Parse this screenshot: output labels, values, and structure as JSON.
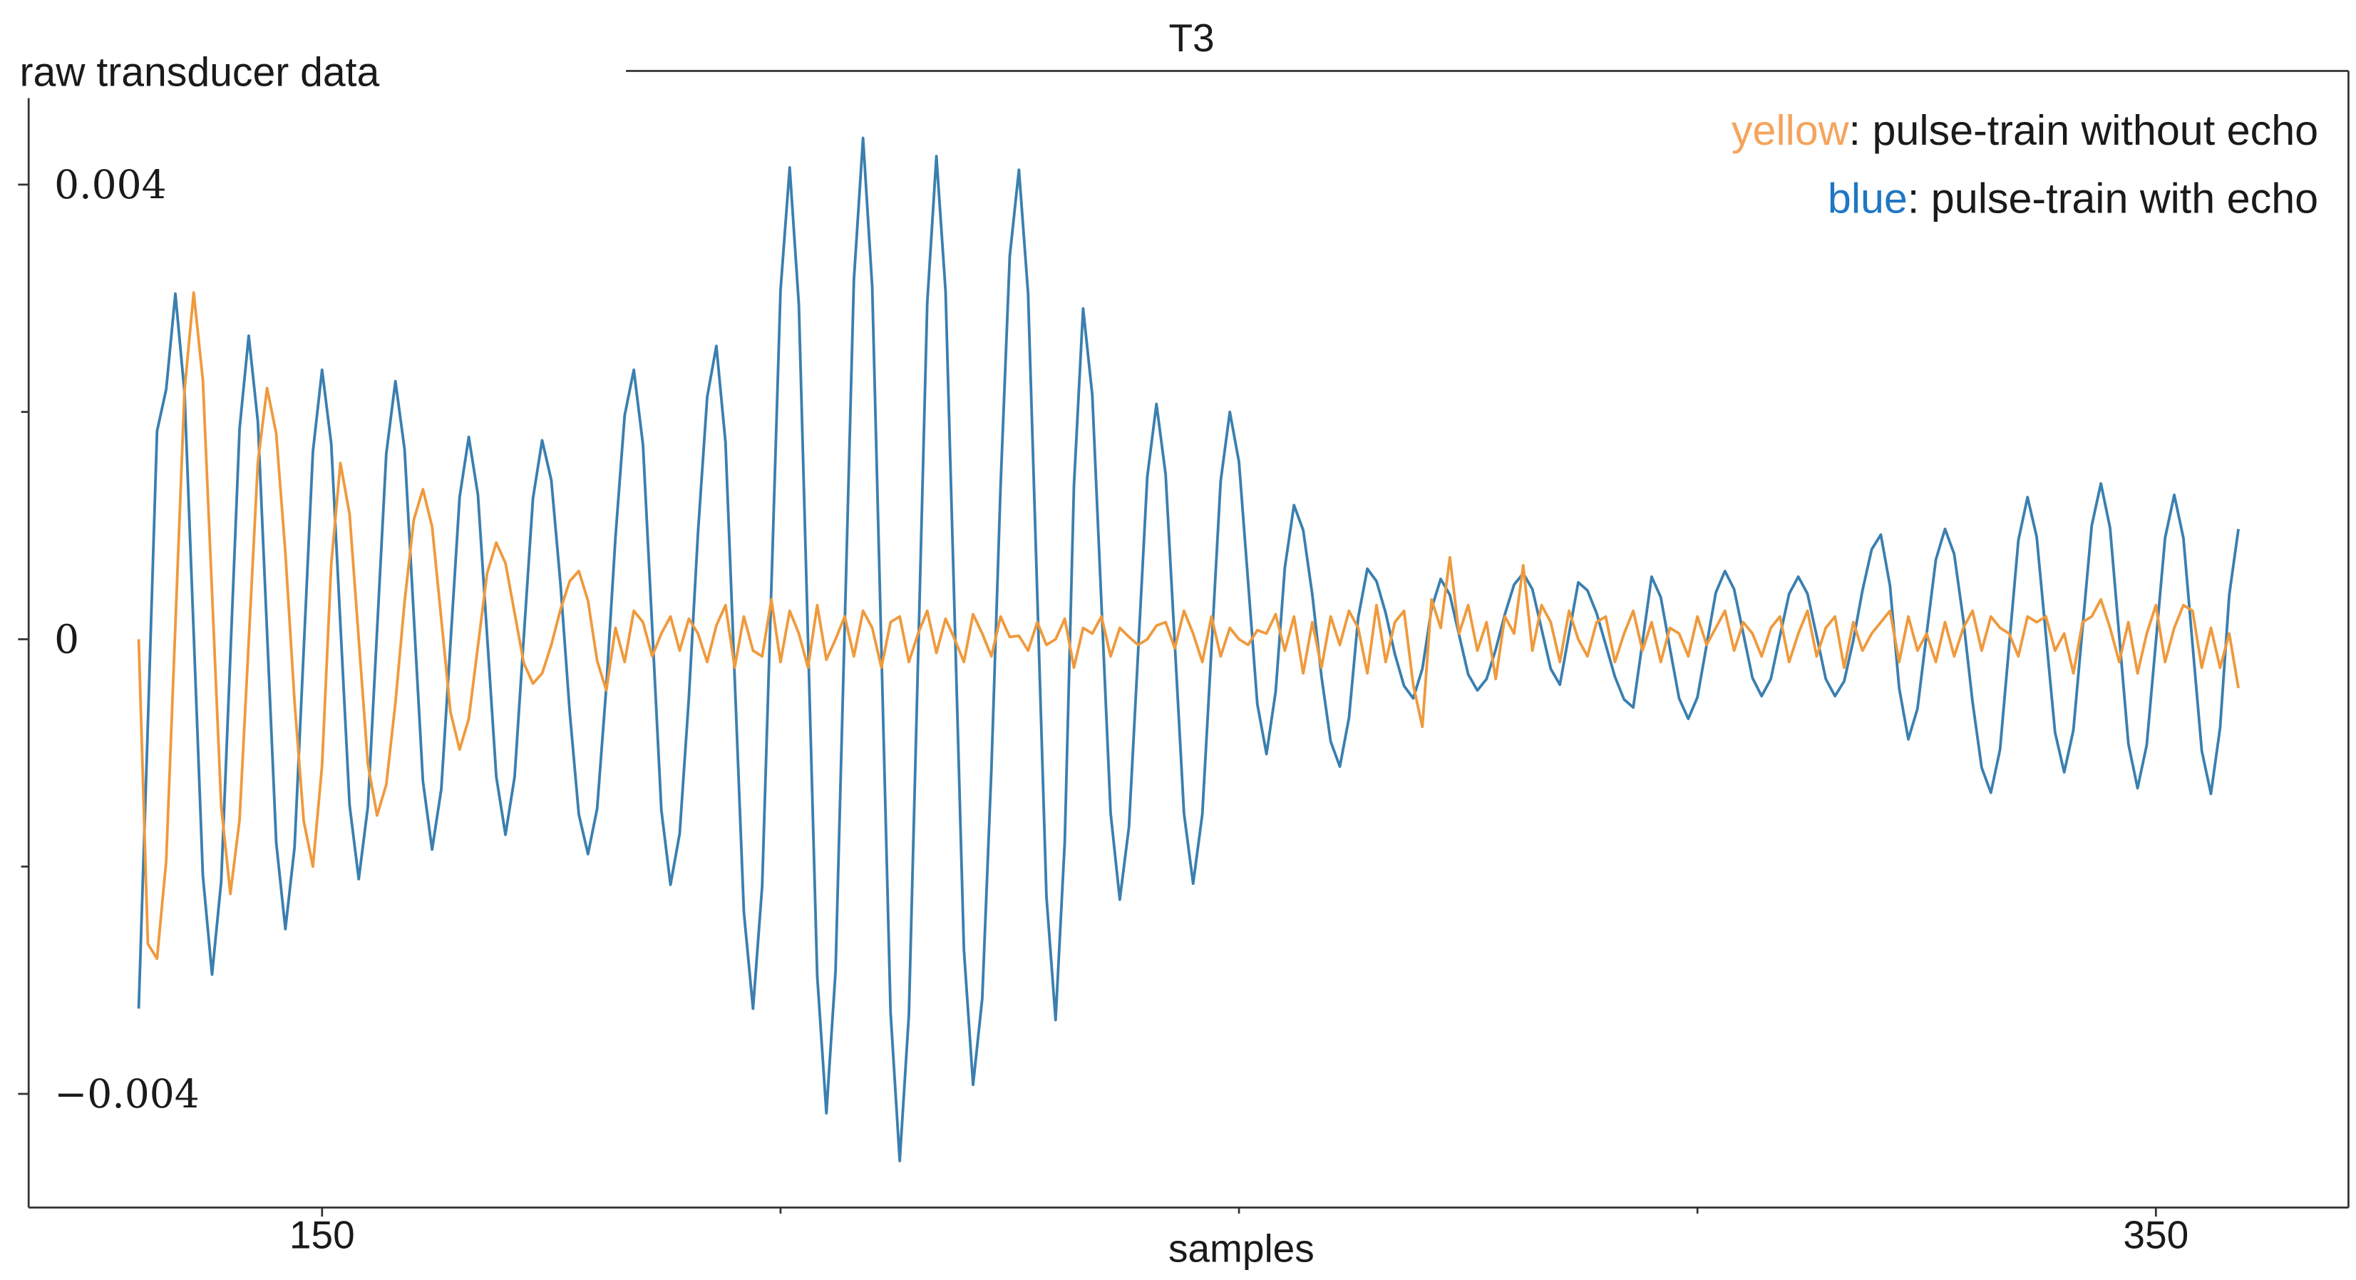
{
  "chart_data": {
    "type": "line",
    "title": "T3",
    "ylabel": "raw transducer data",
    "xlabel": "samples",
    "xlim": [
      118,
      371
    ],
    "ylim": [
      -0.005,
      0.005
    ],
    "xticks": [
      150,
      350
    ],
    "xticks_minor": [
      200,
      250,
      300
    ],
    "yticks": [
      {
        "value": -0.004,
        "label": "−0.004"
      },
      0,
      0.004
    ],
    "yticks_minor": [
      -0.002,
      0.002
    ],
    "legend": "upper right",
    "x": [
      130,
      131,
      132,
      133,
      134,
      135,
      136,
      137,
      138,
      139,
      140,
      141,
      142,
      143,
      144,
      145,
      146,
      147,
      148,
      149,
      150,
      151,
      152,
      153,
      154,
      155,
      156,
      157,
      158,
      159,
      160,
      161,
      162,
      163,
      164,
      165,
      166,
      167,
      168,
      169,
      170,
      171,
      172,
      173,
      174,
      175,
      176,
      177,
      178,
      179,
      180,
      181,
      182,
      183,
      184,
      185,
      186,
      187,
      188,
      189,
      190,
      191,
      192,
      193,
      194,
      195,
      196,
      197,
      198,
      199,
      200,
      201,
      202,
      203,
      204,
      205,
      206,
      207,
      208,
      209,
      210,
      211,
      212,
      213,
      214,
      215,
      216,
      217,
      218,
      219,
      220,
      221,
      222,
      223,
      224,
      225,
      226,
      227,
      228,
      229,
      230,
      231,
      232,
      233,
      234,
      235,
      236,
      237,
      238,
      239,
      240,
      241,
      242,
      243,
      244,
      245,
      246,
      247,
      248,
      249,
      250,
      251,
      252,
      253,
      254,
      255,
      256,
      257,
      258,
      259,
      260,
      261,
      262,
      263,
      264,
      265,
      266,
      267,
      268,
      269,
      270,
      271,
      272,
      273,
      274,
      275,
      276,
      277,
      278,
      279,
      280,
      281,
      282,
      283,
      284,
      285,
      286,
      287,
      288,
      289,
      290,
      291,
      292,
      293,
      294,
      295,
      296,
      297,
      298,
      299,
      300,
      301,
      302,
      303,
      304,
      305,
      306,
      307,
      308,
      309,
      310,
      311,
      312,
      313,
      314,
      315,
      316,
      317,
      318,
      319,
      320,
      321,
      322,
      323,
      324,
      325,
      326,
      327,
      328,
      329,
      330,
      331,
      332,
      333,
      334,
      335,
      336,
      337,
      338,
      339,
      340,
      341,
      342,
      343,
      344,
      345,
      346,
      347,
      348,
      349,
      350,
      351,
      352,
      353,
      354,
      355,
      356,
      357,
      358,
      359
    ],
    "series": [
      {
        "name": "blue",
        "description": ": pulse-train with echo",
        "color": "#3a7fb0",
        "label_color": "#1f77c4",
        "values": [
          -0.00325,
          -0.00075,
          0.00183,
          0.0022,
          0.00304,
          0.00217,
          5e-05,
          -0.00208,
          -0.00295,
          -0.00213,
          -0.00014,
          0.00185,
          0.00267,
          0.00191,
          6e-05,
          -0.00179,
          -0.00255,
          -0.00183,
          -9e-05,
          0.00165,
          0.00237,
          0.00172,
          0.00013,
          -0.00146,
          -0.00211,
          -0.00147,
          8e-05,
          0.00163,
          0.00227,
          0.00167,
          0.00021,
          -0.00125,
          -0.00185,
          -0.00132,
          -4e-05,
          0.00125,
          0.00178,
          0.00127,
          3e-05,
          -0.00121,
          -0.00172,
          -0.00121,
          2e-05,
          0.00124,
          0.00175,
          0.0014,
          0.00049,
          -0.00063,
          -0.00154,
          -0.00189,
          -0.00149,
          -0.00042,
          0.0009,
          0.00197,
          0.00237,
          0.00171,
          0.00011,
          -0.0015,
          -0.00216,
          -0.00171,
          -0.00052,
          0.00094,
          0.00213,
          0.00258,
          0.00173,
          -0.00034,
          -0.0024,
          -0.00325,
          -0.00217,
          0.00045,
          0.00307,
          0.00415,
          0.00294,
          -1e-05,
          -0.00296,
          -0.00417,
          -0.00292,
          0.00012,
          0.00316,
          0.00441,
          0.0031,
          -9e-05,
          -0.00328,
          -0.00459,
          -0.0033,
          -0.00017,
          0.00296,
          0.00425,
          0.00306,
          0.00017,
          -0.00273,
          -0.00392,
          -0.00316,
          -0.00114,
          0.00135,
          0.00337,
          0.00413,
          0.00304,
          0.00039,
          -0.00226,
          -0.00335,
          -0.00178,
          0.00135,
          0.00291,
          0.00215,
          0.00031,
          -0.00153,
          -0.00229,
          -0.00165,
          -0.00011,
          0.00143,
          0.00207,
          0.00145,
          -4e-05,
          -0.00153,
          -0.00215,
          -0.00154,
          -8e-05,
          0.00139,
          0.002,
          0.00156,
          0.0005,
          -0.00057,
          -0.00101,
          -0.00046,
          0.00063,
          0.00118,
          0.00096,
          0.00039,
          -0.00033,
          -0.0009,
          -0.00112,
          -0.00069,
          0.00019,
          0.00062,
          0.00051,
          0.00023,
          -0.00013,
          -0.00041,
          -0.00052,
          -0.00026,
          0.00027,
          0.00053,
          0.00039,
          4e-05,
          -0.00031,
          -0.00045,
          -0.00035,
          -9e-05,
          0.00022,
          0.00048,
          0.00058,
          0.00044,
          9e-05,
          -0.00026,
          -0.0004,
          5e-05,
          0.0005,
          0.00043,
          0.00023,
          -5e-05,
          -0.00033,
          -0.00053,
          -0.0006,
          -3e-05,
          0.00055,
          0.00037,
          -8e-05,
          -0.00052,
          -0.0007,
          -0.00051,
          -5e-05,
          0.00041,
          0.0006,
          0.00044,
          5e-05,
          -0.00034,
          -0.0005,
          -0.00035,
          3e-05,
          0.0004,
          0.00055,
          0.0004,
          3e-05,
          -0.00035,
          -0.0005,
          -0.00037,
          -1e-05,
          0.00043,
          0.00079,
          0.00092,
          0.00047,
          -0.00043,
          -0.00088,
          -0.00061,
          5e-05,
          0.0007,
          0.00097,
          0.00075,
          0.00017,
          -0.00055,
          -0.00113,
          -0.00135,
          -0.00097,
          -5e-05,
          0.00087,
          0.00125,
          0.0009,
          4e-05,
          -0.00082,
          -0.00117,
          -0.0008,
          0.0001,
          0.001,
          0.00137,
          0.00098,
          3e-05,
          -0.00092,
          -0.00131,
          -0.00093,
          -2e-05,
          0.00089,
          0.00127,
          0.00089,
          -5e-05,
          -0.00098,
          -0.00136,
          -0.00078,
          0.00039,
          0.00097
        ]
      },
      {
        "name": "yellow",
        "description": ": pulse-train without echo",
        "color": "#ef9a3d",
        "label_color": "#f5a45c",
        "values": [
          0,
          -0.00268,
          -0.00281,
          -0.00195,
          0.00012,
          0.00219,
          0.00305,
          0.00228,
          0.00041,
          -0.00147,
          -0.00224,
          -0.00159,
          -2e-05,
          0.00156,
          0.00221,
          0.00181,
          0.00076,
          -0.00055,
          -0.0016,
          -0.002,
          -0.00111,
          0.00066,
          0.00155,
          0.0011,
          0,
          -0.0011,
          -0.00155,
          -0.00128,
          -0.00056,
          0.00033,
          0.00105,
          0.00132,
          0.00099,
          0.00018,
          -0.00064,
          -0.00097,
          -0.0007,
          -6e-05,
          0.00058,
          0.00085,
          0.00067,
          0.00023,
          -0.00021,
          -0.00039,
          -0.0003,
          -5e-05,
          0.00026,
          0.00051,
          0.0006,
          0.00034,
          -0.00019,
          -0.00045,
          0.0001,
          -0.0002,
          0.00025,
          0.00015,
          -0.00015,
          5e-05,
          0.0002,
          -0.0001,
          0.00018,
          5e-05,
          -0.0002,
          0.00012,
          0.0003,
          -0.00025,
          0.0002,
          -0.0001,
          -0.00015,
          0.00035,
          -0.0002,
          0.00025,
          5e-05,
          -0.00025,
          0.0003,
          -0.00018,
          0,
          0.0002,
          -0.00015,
          0.00025,
          0.0001,
          -0.00025,
          0.00015,
          0.0002,
          -0.0002,
          5e-05,
          0.00025,
          -0.00012,
          0.00018,
          0,
          -0.0002,
          0.00022,
          5e-05,
          -0.00015,
          0.0002,
          2e-05,
          3e-05,
          -0.0001,
          0.00015,
          -5e-05,
          0,
          0.00018,
          -0.00025,
          0.0001,
          5e-05,
          0.0002,
          -0.00015,
          0.0001,
          2e-05,
          -5e-05,
          0,
          0.00012,
          0.00015,
          -8e-05,
          0.00025,
          5e-05,
          -0.0002,
          0.0002,
          -0.00015,
          0.0001,
          0,
          -5e-05,
          8e-05,
          5e-05,
          0.00022,
          -0.0001,
          0.0002,
          -0.0003,
          0.00015,
          -0.00025,
          0.0002,
          -5e-05,
          0.00025,
          0.0001,
          -0.0003,
          0.0003,
          -0.0002,
          0.00015,
          0.00025,
          -0.0004,
          -0.00077,
          0.00035,
          0.0001,
          0.00072,
          5e-05,
          0.0003,
          -0.0001,
          0.00015,
          -0.00035,
          0.0002,
          5e-05,
          0.00065,
          -0.0001,
          0.0003,
          0.00015,
          -0.0002,
          0.00025,
          0,
          -0.00015,
          0.00015,
          0.0002,
          -0.0002,
          5e-05,
          0.00025,
          -0.0001,
          0.00015,
          -0.0002,
          0.0001,
          5e-05,
          -0.00015,
          0.0002,
          -5e-05,
          0.0001,
          0.00025,
          -0.0001,
          0.00015,
          5e-05,
          -0.00015,
          0.0001,
          0.0002,
          -0.0002,
          5e-05,
          0.00025,
          -0.00015,
          0.0001,
          0.0002,
          -0.00025,
          0.00015,
          -0.0001,
          5e-05,
          0.00015,
          0.00025,
          -0.0002,
          0.0002,
          -0.0001,
          5e-05,
          -0.0002,
          0.00015,
          -0.00015,
          0.0001,
          0.00025,
          -0.0001,
          0.0002,
          0.0001,
          5e-05,
          -0.00015,
          0.0002,
          0.00015,
          0.0002,
          -0.0001,
          5e-05,
          -0.0003,
          0.00015,
          0.0002,
          0.00035,
          0.0001,
          -0.0002,
          0.00015,
          -0.0003,
          5e-05,
          0.0003,
          -0.0002,
          0.0001,
          0.0003,
          0.00025,
          -0.00025,
          0.0001,
          -0.00025,
          5e-05,
          -0.00043
        ]
      }
    ]
  }
}
